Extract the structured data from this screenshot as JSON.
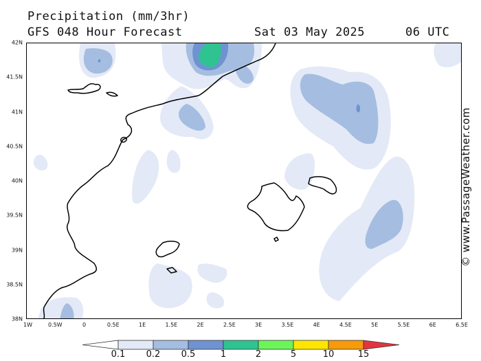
{
  "header": {
    "title": "Precipitation (mm/3hr)",
    "model": "GFS 048 Hour Forecast",
    "date": "Sat 03 May 2025",
    "time": "06 UTC"
  },
  "credit": "© www.PassageWeather.com",
  "latitude_labels": [
    "42N",
    "41.5N",
    "41N",
    "40.5N",
    "40N",
    "39.5N",
    "39N",
    "38.5N",
    "38N"
  ],
  "longitude_labels": [
    "1W",
    "0.5W",
    "0",
    "0.5E",
    "1E",
    "1.5E",
    "2E",
    "2.5E",
    "3E",
    "3.5E",
    "4E",
    "4.5E",
    "5E",
    "5.5E",
    "6E",
    "6.5E"
  ],
  "legend": {
    "labels": [
      "0.1",
      "0.2",
      "0.5",
      "1",
      "2",
      "5",
      "10",
      "15"
    ],
    "colors": [
      "#ffffff",
      "#e3e9f6",
      "#a5bde0",
      "#6f93d1",
      "#2ec391",
      "#6cf55a",
      "#ffe600",
      "#f79a0b",
      "#e4353f"
    ]
  },
  "precip_colors": {
    "light": "#e3e9f6",
    "moderate": "#a5bde0",
    "heavy": "#6f93d1",
    "very_heavy": "#2ec391"
  }
}
